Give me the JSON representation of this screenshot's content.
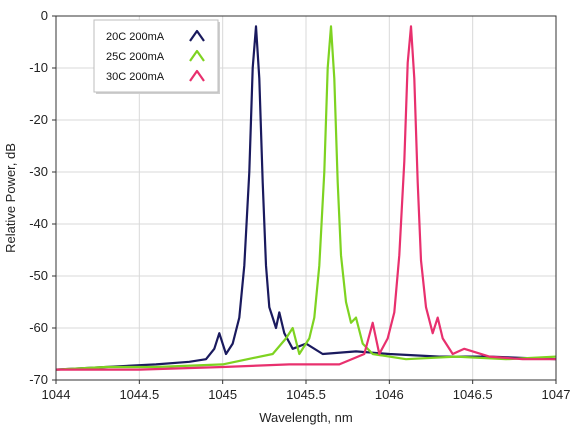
{
  "chart_data": {
    "type": "line",
    "title": "",
    "xlabel": "Wavelength, nm",
    "ylabel": "Relative Power, dB",
    "xlim": [
      1044,
      1047
    ],
    "ylim": [
      -70,
      0
    ],
    "x_ticks": [
      1044,
      1044.5,
      1045,
      1045.5,
      1046,
      1046.5,
      1047
    ],
    "x_tick_labels": [
      "1044",
      "1044.5",
      "1045",
      "1045.5",
      "1046",
      "1046.5",
      "1047"
    ],
    "y_ticks": [
      0,
      -10,
      -20,
      -30,
      -40,
      -50,
      -60,
      -70
    ],
    "y_tick_labels": [
      "0",
      "-10",
      "-20",
      "-30",
      "-40",
      "-50",
      "-60",
      "-70"
    ],
    "grid": true,
    "legend_position": "top-left",
    "series": [
      {
        "name": "20C 200mA",
        "color": "#1a1a5e",
        "points": [
          [
            1044.0,
            -68
          ],
          [
            1044.3,
            -67.5
          ],
          [
            1044.6,
            -67
          ],
          [
            1044.8,
            -66.5
          ],
          [
            1044.9,
            -66
          ],
          [
            1044.95,
            -64
          ],
          [
            1044.98,
            -61
          ],
          [
            1045.02,
            -65
          ],
          [
            1045.06,
            -63
          ],
          [
            1045.1,
            -58
          ],
          [
            1045.13,
            -48
          ],
          [
            1045.16,
            -30
          ],
          [
            1045.18,
            -10
          ],
          [
            1045.2,
            -2
          ],
          [
            1045.22,
            -12
          ],
          [
            1045.24,
            -32
          ],
          [
            1045.26,
            -48
          ],
          [
            1045.28,
            -56
          ],
          [
            1045.3,
            -58
          ],
          [
            1045.32,
            -60
          ],
          [
            1045.34,
            -57
          ],
          [
            1045.37,
            -61
          ],
          [
            1045.42,
            -64
          ],
          [
            1045.5,
            -63
          ],
          [
            1045.6,
            -65
          ],
          [
            1045.8,
            -64.5
          ],
          [
            1046.0,
            -65
          ],
          [
            1046.3,
            -65.5
          ],
          [
            1046.6,
            -65.5
          ],
          [
            1047.0,
            -66
          ]
        ]
      },
      {
        "name": "25C 200mA",
        "color": "#7ed321",
        "points": [
          [
            1044.0,
            -68
          ],
          [
            1044.3,
            -67.5
          ],
          [
            1044.6,
            -67.5
          ],
          [
            1045.0,
            -67
          ],
          [
            1045.3,
            -65
          ],
          [
            1045.38,
            -62
          ],
          [
            1045.42,
            -60
          ],
          [
            1045.46,
            -65
          ],
          [
            1045.52,
            -62
          ],
          [
            1045.55,
            -58
          ],
          [
            1045.58,
            -48
          ],
          [
            1045.61,
            -30
          ],
          [
            1045.63,
            -10
          ],
          [
            1045.65,
            -2
          ],
          [
            1045.67,
            -12
          ],
          [
            1045.69,
            -32
          ],
          [
            1045.71,
            -46
          ],
          [
            1045.74,
            -55
          ],
          [
            1045.77,
            -59
          ],
          [
            1045.8,
            -58
          ],
          [
            1045.84,
            -63
          ],
          [
            1045.9,
            -65
          ],
          [
            1046.1,
            -66
          ],
          [
            1046.4,
            -65.5
          ],
          [
            1046.7,
            -66
          ],
          [
            1047.0,
            -65.5
          ]
        ]
      },
      {
        "name": "30C 200mA",
        "color": "#e8306e",
        "points": [
          [
            1044.0,
            -68
          ],
          [
            1044.5,
            -68
          ],
          [
            1045.0,
            -67.5
          ],
          [
            1045.4,
            -67
          ],
          [
            1045.7,
            -67
          ],
          [
            1045.85,
            -65
          ],
          [
            1045.9,
            -59
          ],
          [
            1045.94,
            -65
          ],
          [
            1045.99,
            -62
          ],
          [
            1046.03,
            -57
          ],
          [
            1046.06,
            -46
          ],
          [
            1046.09,
            -28
          ],
          [
            1046.11,
            -9
          ],
          [
            1046.13,
            -2
          ],
          [
            1046.15,
            -12
          ],
          [
            1046.17,
            -32
          ],
          [
            1046.19,
            -47
          ],
          [
            1046.22,
            -56
          ],
          [
            1046.26,
            -61
          ],
          [
            1046.29,
            -58
          ],
          [
            1046.32,
            -62
          ],
          [
            1046.38,
            -65
          ],
          [
            1046.45,
            -64
          ],
          [
            1046.6,
            -65.5
          ],
          [
            1046.8,
            -66
          ],
          [
            1047.0,
            -66
          ]
        ]
      }
    ]
  }
}
